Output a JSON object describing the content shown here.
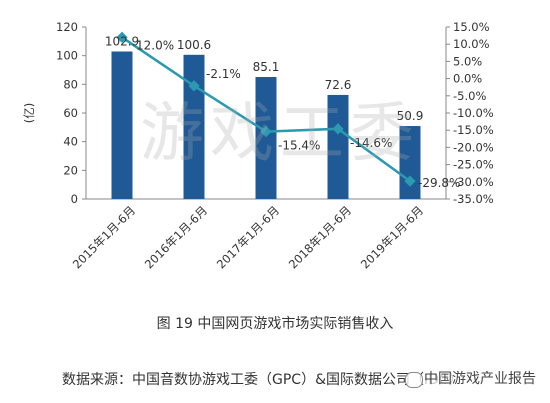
{
  "chart_data": {
    "type": "bar",
    "categories": [
      "2015年1月-6月",
      "2016年1月-6月",
      "2017年1月-6月",
      "2018年1月-6月",
      "2019年1月-6月"
    ],
    "series": [
      {
        "values": [
          102.9,
          100.6,
          85.1,
          72.6,
          50.9
        ],
        "labels": [
          "102.9",
          "100.6",
          "85.1",
          "72.6",
          "50.9"
        ],
        "color": "#1f5a96",
        "axis": "left"
      },
      {
        "type": "line",
        "values": [
          12.0,
          -2.1,
          -15.4,
          -14.6,
          -29.8
        ],
        "labels": [
          "12.0%",
          "-2.1%",
          "-15.4%",
          "-14.6%",
          "-29.8%"
        ],
        "color": "#2a9ab0",
        "axis": "right"
      }
    ],
    "ylabel": "(亿)",
    "ylim": [
      0,
      120
    ],
    "yticks": [
      "0",
      "20",
      "40",
      "60",
      "80",
      "100",
      "120"
    ],
    "y2lim": [
      -35,
      15
    ],
    "y2ticks": [
      "15.0%",
      "10.0%",
      "5.0%",
      "0.0%",
      "-5.0%",
      "-10.0%",
      "-15.0%",
      "-20.0%",
      "-25.0%",
      "-30.0%",
      "-35.0%"
    ],
    "grid": false,
    "legend": "none"
  },
  "caption": "图 19  中国网页游戏市场实际销售收入",
  "source": "数据来源：中国音数协游戏工委（GPC）&国际数据公司（IDC）",
  "watermark": "游戏工委",
  "wechat_label": "中国游戏产业报告"
}
